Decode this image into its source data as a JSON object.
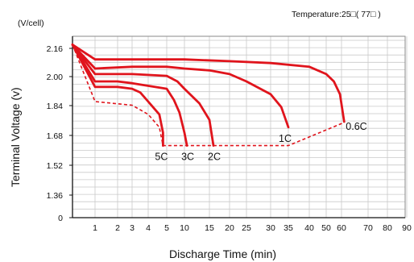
{
  "chart_data": {
    "type": "line",
    "title": "",
    "annotation": "Temperature:25□( 77□ )",
    "unit_label": "(V/cell)",
    "xlabel": "Discharge  Time  (min)",
    "ylabel": "Terminal  Voltage  (v)",
    "y_ticks": [
      "2.16",
      "2.00",
      "1.84",
      "1.68",
      "1.52",
      "1.36",
      "0"
    ],
    "x_ticks": [
      "1",
      "2",
      "3",
      "4",
      "5",
      "10",
      "15",
      "20",
      "25",
      "30",
      "35",
      "40",
      "50",
      "60",
      "70",
      "80",
      "90"
    ],
    "grid": true,
    "series": [
      {
        "name": "0.6C",
        "color": "#e0141c",
        "x": [
          0,
          1,
          5,
          10,
          20,
          30,
          40,
          50,
          55,
          59,
          61
        ],
        "y": [
          2.18,
          2.1,
          2.1,
          2.1,
          2.09,
          2.08,
          2.06,
          2.02,
          1.98,
          1.91,
          1.76
        ]
      },
      {
        "name": "1C",
        "color": "#e0141c",
        "x": [
          0,
          1,
          3,
          5,
          10,
          15,
          20,
          25,
          30,
          33,
          35
        ],
        "y": [
          2.18,
          2.05,
          2.06,
          2.06,
          2.05,
          2.04,
          2.02,
          1.98,
          1.91,
          1.84,
          1.73
        ]
      },
      {
        "name": "2C",
        "color": "#e0141c",
        "x": [
          0,
          1,
          3,
          5,
          8,
          10,
          13,
          15,
          16
        ],
        "y": [
          2.18,
          2.02,
          2.02,
          2.01,
          1.98,
          1.94,
          1.86,
          1.77,
          1.63
        ]
      },
      {
        "name": "3C",
        "color": "#e0141c",
        "x": [
          0,
          1,
          2,
          3,
          5,
          7,
          8.6,
          10,
          10.5
        ],
        "y": [
          2.18,
          1.98,
          1.98,
          1.97,
          1.94,
          1.88,
          1.81,
          1.7,
          1.63
        ]
      },
      {
        "name": "5C",
        "color": "#e0141c",
        "x": [
          0,
          1,
          2,
          3,
          3.5,
          4,
          4.6,
          4.8,
          4.8
        ],
        "y": [
          2.18,
          1.95,
          1.95,
          1.94,
          1.92,
          1.87,
          1.8,
          1.7,
          1.63
        ]
      }
    ],
    "cutoff_line": {
      "style": "dashed",
      "color": "#e0141c",
      "x": [
        0,
        1,
        3,
        4,
        4.6,
        4.8,
        35,
        60,
        61
      ],
      "y": [
        2.18,
        1.87,
        1.85,
        1.8,
        1.73,
        1.63,
        1.63,
        1.75,
        1.76
      ]
    },
    "labels": [
      {
        "text": "5C",
        "series": "5C"
      },
      {
        "text": "3C",
        "series": "3C"
      },
      {
        "text": "2C",
        "series": "2C"
      },
      {
        "text": "1C",
        "series": "1C"
      },
      {
        "text": "0.6C",
        "series": "0.6C"
      }
    ]
  }
}
